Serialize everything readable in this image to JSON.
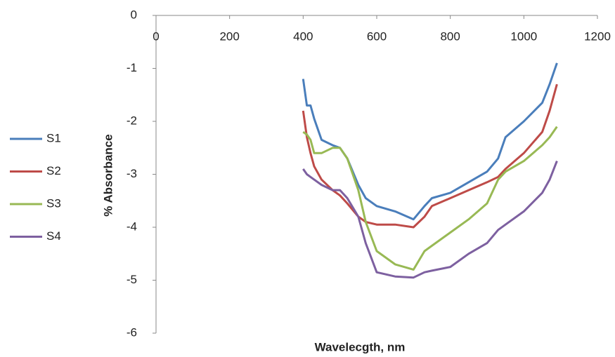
{
  "chart_data": {
    "type": "line",
    "y_label": "% Absorbance",
    "x_label": "Wavelecgth, nm",
    "x": [
      400,
      410,
      420,
      430,
      450,
      480,
      500,
      520,
      550,
      570,
      600,
      650,
      700,
      730,
      750,
      800,
      850,
      900,
      930,
      950,
      1000,
      1050,
      1070,
      1090
    ],
    "series": [
      {
        "name": "S1",
        "color": "#4a7ebb",
        "values": [
          -1.2,
          -1.7,
          -1.7,
          -1.95,
          -2.35,
          -2.45,
          -2.5,
          -2.7,
          -3.2,
          -3.45,
          -3.6,
          -3.7,
          -3.85,
          -3.6,
          -3.45,
          -3.35,
          -3.15,
          -2.95,
          -2.7,
          -2.3,
          -2.0,
          -1.65,
          -1.3,
          -0.9
        ]
      },
      {
        "name": "S2",
        "color": "#be4b48",
        "values": [
          -1.8,
          -2.3,
          -2.6,
          -2.85,
          -3.1,
          -3.3,
          -3.4,
          -3.55,
          -3.8,
          -3.9,
          -3.95,
          -3.95,
          -4.0,
          -3.8,
          -3.6,
          -3.45,
          -3.3,
          -3.15,
          -3.05,
          -2.9,
          -2.6,
          -2.2,
          -1.8,
          -1.3
        ]
      },
      {
        "name": "S3",
        "color": "#98b954",
        "values": [
          -2.2,
          -2.25,
          -2.35,
          -2.6,
          -2.6,
          -2.5,
          -2.5,
          -2.7,
          -3.3,
          -3.9,
          -4.45,
          -4.7,
          -4.8,
          -4.45,
          -4.35,
          -4.1,
          -3.85,
          -3.55,
          -3.1,
          -2.95,
          -2.75,
          -2.45,
          -2.3,
          -2.1
        ]
      },
      {
        "name": "S4",
        "color": "#7d60a0",
        "values": [
          -2.9,
          -3.0,
          -3.05,
          -3.1,
          -3.2,
          -3.3,
          -3.3,
          -3.45,
          -3.8,
          -4.3,
          -4.85,
          -4.93,
          -4.95,
          -4.85,
          -4.82,
          -4.75,
          -4.5,
          -4.3,
          -4.05,
          -3.95,
          -3.7,
          -3.35,
          -3.1,
          -2.75
        ]
      }
    ],
    "xlim": [
      0,
      1200
    ],
    "xticks": [
      0,
      200,
      400,
      600,
      800,
      1000,
      1200
    ],
    "ylim": [
      -6,
      0
    ],
    "yticks": [
      0,
      -1,
      -2,
      -3,
      -4,
      -5,
      -6
    ],
    "legend": "left",
    "grid": false
  }
}
